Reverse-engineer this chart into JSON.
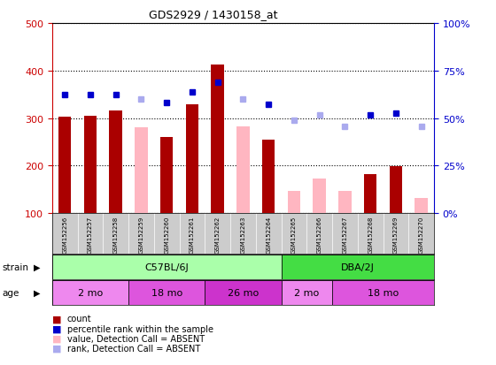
{
  "title": "GDS2929 / 1430158_at",
  "samples": [
    "GSM152256",
    "GSM152257",
    "GSM152258",
    "GSM152259",
    "GSM152260",
    "GSM152261",
    "GSM152262",
    "GSM152263",
    "GSM152264",
    "GSM152265",
    "GSM152266",
    "GSM152267",
    "GSM152268",
    "GSM152269",
    "GSM152270"
  ],
  "count_values": [
    302,
    305,
    315,
    null,
    260,
    328,
    413,
    null,
    255,
    null,
    null,
    null,
    182,
    198,
    null
  ],
  "count_absent": [
    null,
    null,
    null,
    280,
    null,
    null,
    null,
    283,
    null,
    147,
    172,
    147,
    null,
    null,
    132
  ],
  "rank_present": [
    350,
    350,
    350,
    null,
    333,
    355,
    375,
    null,
    328,
    null,
    null,
    null,
    307,
    310,
    null
  ],
  "rank_absent": [
    null,
    null,
    null,
    340,
    null,
    null,
    null,
    340,
    null,
    295,
    307,
    283,
    null,
    null,
    283
  ],
  "ylim_left": [
    100,
    500
  ],
  "ylim_right": [
    0,
    100
  ],
  "strain_groups": [
    {
      "label": "C57BL/6J",
      "start": 0,
      "end": 9,
      "color": "#AAFFAA"
    },
    {
      "label": "DBA/2J",
      "start": 9,
      "end": 15,
      "color": "#44DD44"
    }
  ],
  "age_groups": [
    {
      "label": "2 mo",
      "start": 0,
      "end": 3,
      "color": "#EE88EE"
    },
    {
      "label": "18 mo",
      "start": 3,
      "end": 6,
      "color": "#DD55DD"
    },
    {
      "label": "26 mo",
      "start": 6,
      "end": 9,
      "color": "#CC33CC"
    },
    {
      "label": "2 mo",
      "start": 9,
      "end": 11,
      "color": "#EE88EE"
    },
    {
      "label": "18 mo",
      "start": 11,
      "end": 15,
      "color": "#DD55DD"
    }
  ],
  "count_color": "#AA0000",
  "count_absent_color": "#FFB6C1",
  "rank_present_color": "#0000CC",
  "rank_absent_color": "#AAAAEE",
  "left_axis_color": "#CC0000",
  "right_axis_color": "#0000CC",
  "legend_colors": [
    "#AA0000",
    "#0000CC",
    "#FFB6C1",
    "#AAAAEE"
  ],
  "legend_labels": [
    "count",
    "percentile rank within the sample",
    "value, Detection Call = ABSENT",
    "rank, Detection Call = ABSENT"
  ]
}
